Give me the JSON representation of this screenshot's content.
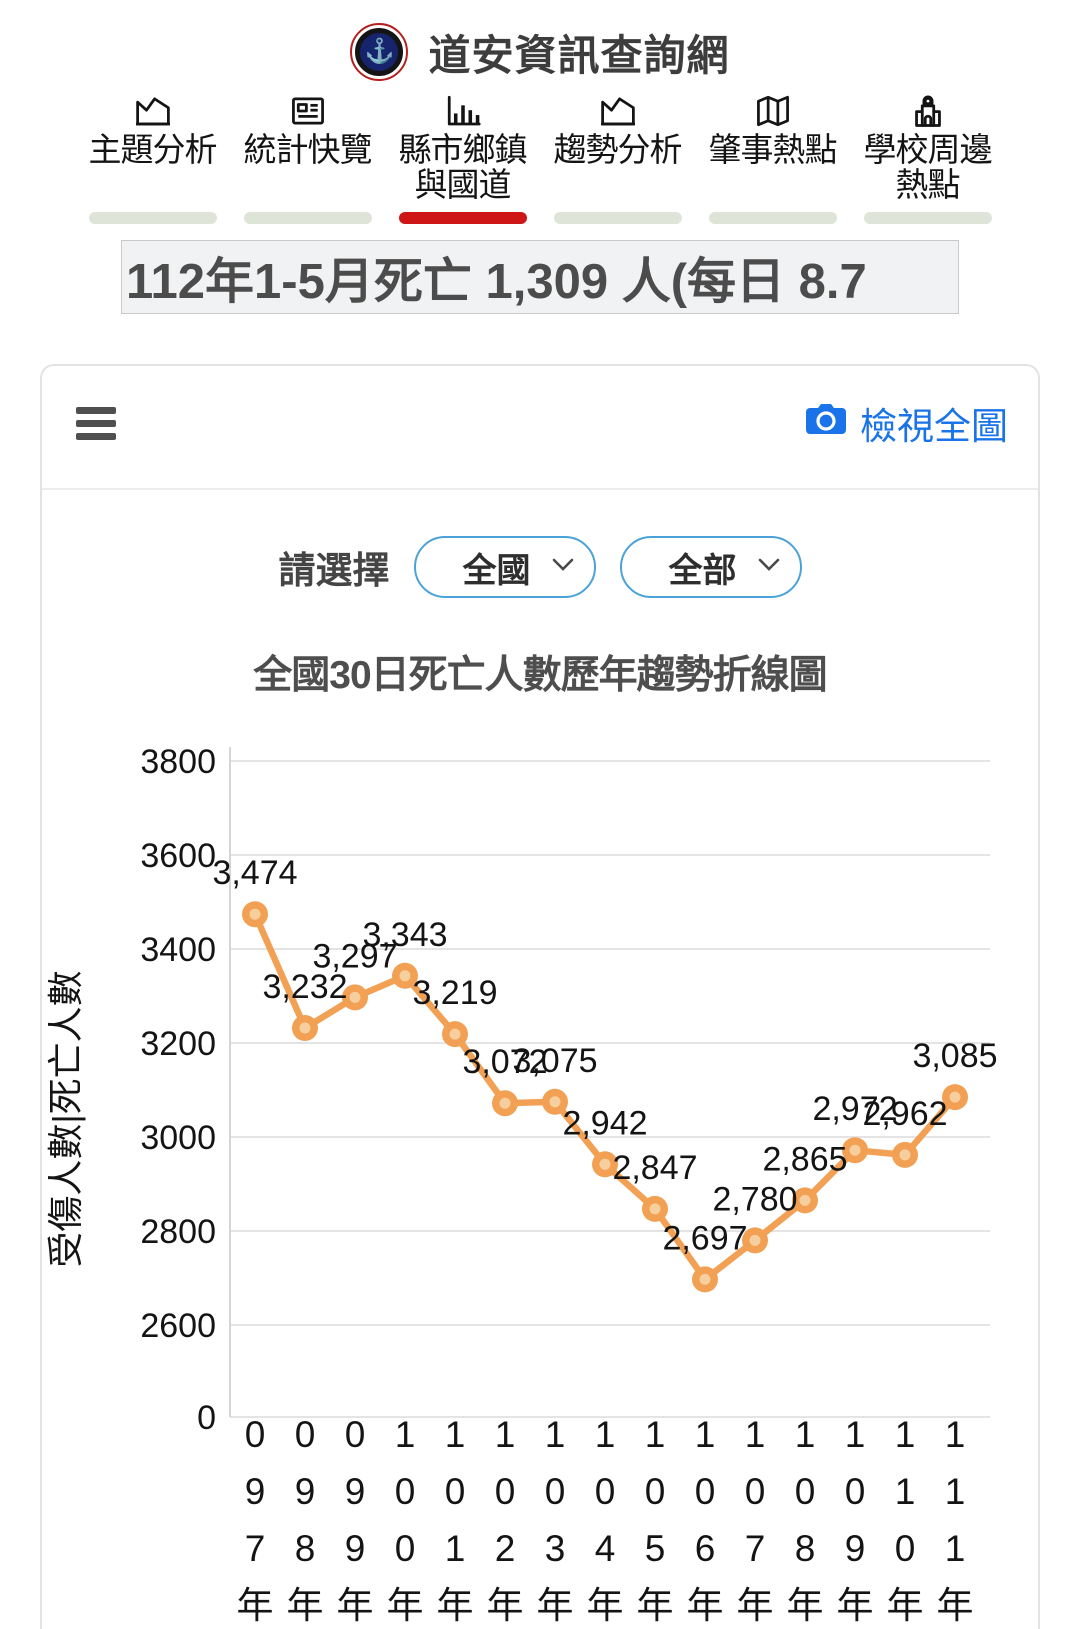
{
  "header": {
    "title": "道安資訊查詢網",
    "logo": "traffic-safety-emblem"
  },
  "nav": {
    "items": [
      {
        "id": "topic-analysis",
        "label": "主題分析",
        "icon": "area-chart-icon",
        "active": false
      },
      {
        "id": "stats-overview",
        "label": "統計快覽",
        "icon": "newspaper-icon",
        "active": false
      },
      {
        "id": "county-township",
        "label": "縣市鄉鎮\n與國道",
        "icon": "bar-chart-icon",
        "active": true
      },
      {
        "id": "trend-analysis",
        "label": "趨勢分析",
        "icon": "area-chart-icon",
        "active": false
      },
      {
        "id": "crash-hotspots",
        "label": "肇事熱點",
        "icon": "map-icon",
        "active": false
      },
      {
        "id": "school-area-hotspots",
        "label": "學校周邊\n熱點",
        "icon": "school-icon",
        "active": false
      }
    ],
    "active_color": "#ce1616",
    "inactive_color": "#dfe4d9"
  },
  "marquee": {
    "text": "112年1-5月死亡 1,309 人(每日 8.7"
  },
  "panel": {
    "view_full_label": "檢視全圖",
    "select_label": "請選擇",
    "dropdowns": [
      {
        "value": "全國"
      },
      {
        "value": "全部"
      }
    ]
  },
  "chart_data": {
    "type": "line",
    "title": "全國30日死亡人數歷年趨勢折線圖",
    "ylabel": "受傷人數|死亡人數",
    "xlabel": "",
    "categories": [
      "097年",
      "098年",
      "099年",
      "100年",
      "101年",
      "102年",
      "103年",
      "104年",
      "105年",
      "106年",
      "107年",
      "108年",
      "109年",
      "110年",
      "111年"
    ],
    "values": [
      3474,
      3232,
      3297,
      3343,
      3219,
      3072,
      3075,
      2942,
      2847,
      2697,
      2780,
      2865,
      2972,
      2962,
      3085
    ],
    "yticks": [
      3800,
      3600,
      3400,
      3200,
      3000,
      2800,
      2600,
      0
    ],
    "ylim_note": "broken axis: 0 shown below truncated 2600-3800 range",
    "grid": true,
    "legend": "none",
    "line_color": "#f2a154",
    "marker_inner_color": "#f7cf9e",
    "grid_color": "#e4e4e4",
    "text_color": "#141414"
  }
}
